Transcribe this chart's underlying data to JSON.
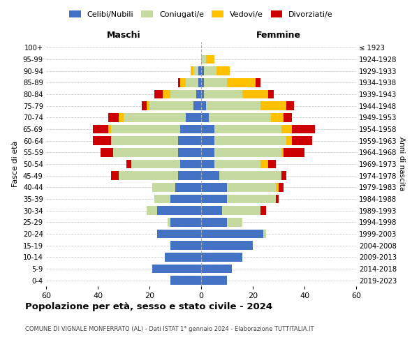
{
  "age_groups": [
    "0-4",
    "5-9",
    "10-14",
    "15-19",
    "20-24",
    "25-29",
    "30-34",
    "35-39",
    "40-44",
    "45-49",
    "50-54",
    "55-59",
    "60-64",
    "65-69",
    "70-74",
    "75-79",
    "80-84",
    "85-89",
    "90-94",
    "95-99",
    "100+"
  ],
  "birth_years": [
    "2019-2023",
    "2014-2018",
    "2009-2013",
    "2004-2008",
    "1999-2003",
    "1994-1998",
    "1989-1993",
    "1984-1988",
    "1979-1983",
    "1974-1978",
    "1969-1973",
    "1964-1968",
    "1959-1963",
    "1954-1958",
    "1949-1953",
    "1944-1948",
    "1939-1943",
    "1934-1938",
    "1929-1933",
    "1924-1928",
    "≤ 1923"
  ],
  "colors": {
    "celibe": "#4472c4",
    "coniugato": "#c5d9a0",
    "vedovo": "#ffc000",
    "divorziato": "#cc0000"
  },
  "maschi": {
    "celibe": [
      12,
      19,
      14,
      12,
      17,
      12,
      17,
      12,
      10,
      9,
      8,
      9,
      9,
      8,
      6,
      3,
      2,
      1,
      1,
      0,
      0
    ],
    "coniugato": [
      0,
      0,
      0,
      0,
      0,
      1,
      4,
      6,
      9,
      23,
      19,
      25,
      26,
      27,
      24,
      17,
      10,
      5,
      2,
      0,
      0
    ],
    "vedovo": [
      0,
      0,
      0,
      0,
      0,
      0,
      0,
      0,
      0,
      0,
      0,
      0,
      0,
      1,
      2,
      1,
      3,
      2,
      1,
      0,
      0
    ],
    "divorziato": [
      0,
      0,
      0,
      0,
      0,
      0,
      0,
      0,
      0,
      3,
      2,
      5,
      7,
      6,
      4,
      2,
      3,
      1,
      0,
      0,
      0
    ]
  },
  "femmine": {
    "celibe": [
      10,
      12,
      16,
      20,
      24,
      10,
      8,
      10,
      10,
      7,
      5,
      5,
      5,
      5,
      3,
      2,
      1,
      1,
      1,
      0,
      0
    ],
    "coniugato": [
      0,
      0,
      0,
      0,
      1,
      6,
      15,
      19,
      19,
      24,
      18,
      26,
      28,
      26,
      24,
      21,
      15,
      9,
      5,
      2,
      0
    ],
    "vedovo": [
      0,
      0,
      0,
      0,
      0,
      0,
      0,
      0,
      1,
      0,
      3,
      1,
      2,
      4,
      5,
      10,
      10,
      11,
      5,
      3,
      0
    ],
    "divorziato": [
      0,
      0,
      0,
      0,
      0,
      0,
      2,
      1,
      2,
      2,
      3,
      8,
      8,
      9,
      3,
      3,
      2,
      2,
      0,
      0,
      0
    ]
  },
  "xlim": 60,
  "xlabel_left": "Maschi",
  "xlabel_right": "Femmine",
  "ylabel_left": "Fasce di età",
  "ylabel_right": "Anni di nascita",
  "title": "Popolazione per età, sesso e stato civile - 2024",
  "subtitle": "COMUNE DI VIGNALE MONFERRATO (AL) - Dati ISTAT 1° gennaio 2024 - Elaborazione TUTTITALIA.IT",
  "legend_labels": [
    "Celibi/Nubili",
    "Coniugati/e",
    "Vedovi/e",
    "Divorziati/e"
  ],
  "bg_color": "#ffffff",
  "grid_color": "#cccccc"
}
